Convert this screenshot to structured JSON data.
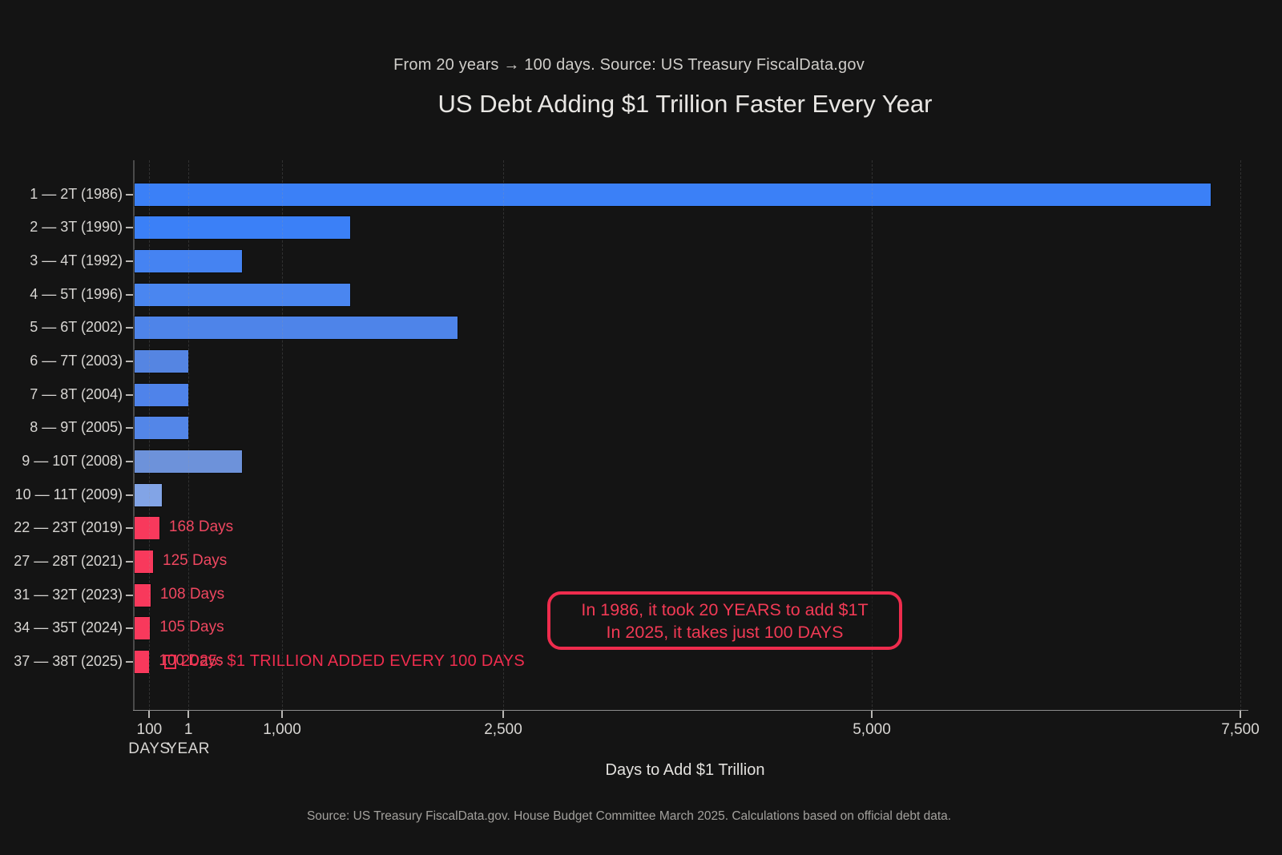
{
  "header": {
    "subtitle": "From 20 years → 100 days. Source: US Treasury FiscalData.gov",
    "title": "US Debt Adding $1 Trillion Faster Every Year"
  },
  "chart_data": {
    "type": "bar",
    "orientation": "horizontal",
    "title": "US Debt Adding $1 Trillion Faster Every Year",
    "subtitle": "From 20 years → 100 days. Source: US Treasury FiscalData.gov",
    "xlabel": "Days to Add $1 Trillion",
    "ylabel": "",
    "xlim": [
      0,
      7560
    ],
    "grid": "vertical-dashed",
    "legend": "none",
    "categories": [
      "1 — 2T (1986)",
      "2 — 3T (1990)",
      "3 — 4T (1992)",
      "4 — 5T (1996)",
      "5 — 6T (2002)",
      "6 — 7T (2003)",
      "7 — 8T (2004)",
      "8 — 9T (2005)",
      "9 — 10T (2008)",
      "10 — 11T (2009)",
      "22 — 23T (2019)",
      "27 — 28T (2021)",
      "31 — 32T (2023)",
      "34 — 35T (2024)",
      "37 — 38T (2025)"
    ],
    "values": [
      7300,
      1460,
      730,
      1460,
      2190,
      365,
      365,
      365,
      730,
      186,
      168,
      125,
      108,
      105,
      100
    ],
    "bar_labels": [
      "",
      "",
      "",
      "",
      "",
      "",
      "",
      "",
      "",
      "",
      "168 Days",
      "125 Days",
      "108 Days",
      "105 Days",
      "100 Days"
    ],
    "bar_colors": [
      "#3b80f7",
      "#3b80f7",
      "#4583f2",
      "#4a86f0",
      "#4e84e9",
      "#5585e2",
      "#4f83ea",
      "#5386e8",
      "#6d92da",
      "#82a4e6",
      "#f8395c",
      "#f8395c",
      "#f8395c",
      "#f8395c",
      "#f8395c"
    ],
    "bar_textures": [
      "none",
      "none",
      "dots-subtle",
      "dots-subtle",
      "dots-subtle",
      "none",
      "dots-subtle",
      "dots-subtle",
      "none",
      "dots-strong",
      "dots-red",
      "dots-red",
      "dots-red",
      "dots-red",
      "dots-red"
    ],
    "x_ticks": [
      {
        "value": 100,
        "label": "100",
        "sublabel": "DAYS"
      },
      {
        "value": 365,
        "label": "1",
        "sublabel": "YEAR"
      },
      {
        "value": 1000,
        "label": "1,000",
        "sublabel": ""
      },
      {
        "value": 2500,
        "label": "2,500",
        "sublabel": ""
      },
      {
        "value": 5000,
        "label": "5,000",
        "sublabel": ""
      },
      {
        "value": 7500,
        "label": "7,500",
        "sublabel": ""
      }
    ]
  },
  "annotations": {
    "callout_line1": "In 1986, it took 20 YEARS to add $1T",
    "callout_line2": "In 2025, it takes just 100 DAYS",
    "bottom_note": "2025: $1 TRILLION ADDED EVERY 100 DAYS"
  },
  "axis": {
    "xlabel": "Days to Add $1 Trillion"
  },
  "footer": {
    "source": "Source: US Treasury FiscalData.gov. House Budget Committee March 2025. Calculations based on official debt data."
  },
  "colors": {
    "background": "#141414",
    "blue_primary": "#3b80f7",
    "blue_muted": "#6d92da",
    "blue_light": "#82a4e6",
    "red_accent": "#f8395c",
    "callout_border": "#ee2c4d",
    "text_primary": "#e8e6e3",
    "text_secondary": "#d8d6d3",
    "text_footer": "#a3a19d"
  }
}
